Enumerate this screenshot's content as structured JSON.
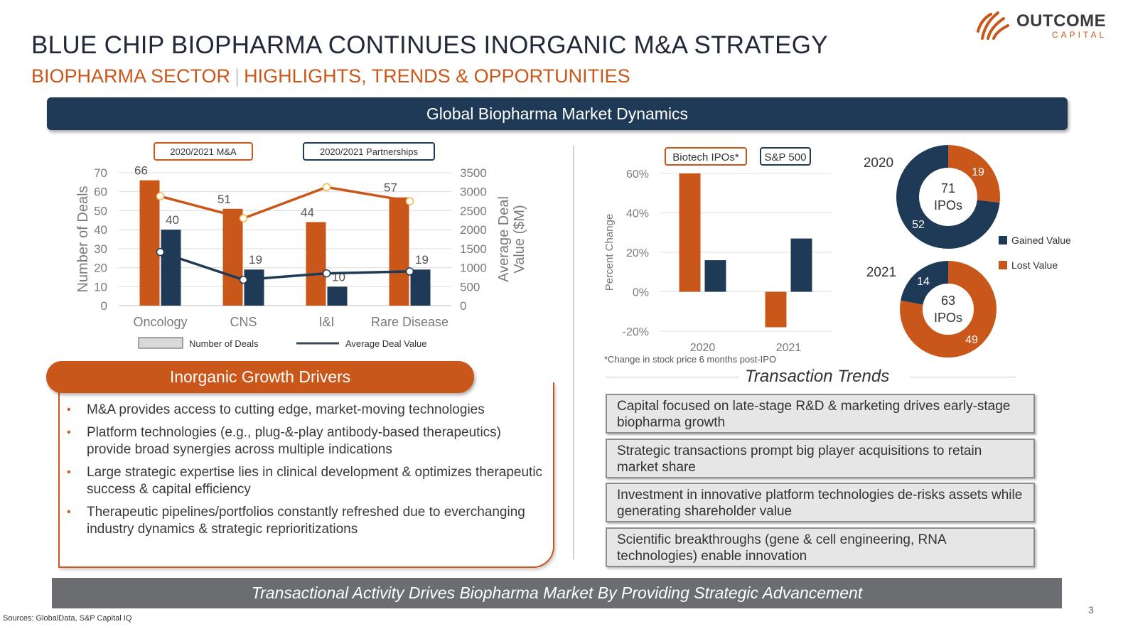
{
  "header": {
    "title": "BLUE CHIP BIOPHARMA CONTINUES INORGANIC M&A STRATEGY",
    "subtitle_left": "BIOPHARMA SECTOR",
    "subtitle_sep": "|",
    "subtitle_right": "HIGHLIGHTS, TRENDS & OPPORTUNITIES"
  },
  "logo": {
    "word": "OUTCOME",
    "sub": "CAPITAL",
    "icon": "sunburst-logo-icon"
  },
  "banner": {
    "title": "Global Biopharma Market Dynamics"
  },
  "colors": {
    "navy": "#1f3a56",
    "orange": "#c9571a",
    "gray": "#6b6d70"
  },
  "chart_data": [
    {
      "type": "bar",
      "id": "ma-partnerships",
      "title": "",
      "legend_boxes": [
        "2020/2021 M&A",
        "2020/2021 Partnerships"
      ],
      "categories": [
        "Oncology",
        "CNS",
        "I&I",
        "Rare Disease"
      ],
      "series": [
        {
          "name": "2020/2021 M&A",
          "kind": "bar",
          "axis": "left",
          "color": "#c9571a",
          "values": [
            66,
            51,
            44,
            57
          ]
        },
        {
          "name": "2020/2021 Partnerships",
          "kind": "bar",
          "axis": "left",
          "color": "#1f3a56",
          "values": [
            40,
            19,
            10,
            19
          ]
        },
        {
          "name": "M&A Average Deal Value",
          "kind": "line",
          "axis": "right",
          "color": "#c9571a",
          "values": [
            2880,
            2300,
            3120,
            2750
          ]
        },
        {
          "name": "Partnerships Average Deal Value",
          "kind": "line",
          "axis": "right",
          "color": "#1f3a56",
          "values": [
            1410,
            680,
            850,
            900
          ]
        }
      ],
      "ylabel": "Number of Deals",
      "y2label": "Average Deal Value ($M)",
      "ylim": [
        0,
        70
      ],
      "y2lim": [
        0,
        3500
      ],
      "yticks": [
        0,
        10,
        20,
        30,
        40,
        50,
        60,
        70
      ],
      "y2ticks": [
        0,
        500,
        1000,
        1500,
        2000,
        2500,
        3000,
        3500
      ],
      "legend": [
        "Number of Deals",
        "Average Deal Value"
      ]
    },
    {
      "type": "bar",
      "id": "ipo-performance",
      "legend_boxes": [
        "Biotech IPOs*",
        "S&P 500"
      ],
      "categories": [
        "2020",
        "2021"
      ],
      "series": [
        {
          "name": "Biotech IPOs*",
          "color": "#c9571a",
          "values": [
            60,
            -18
          ]
        },
        {
          "name": "S&P 500",
          "color": "#1f3a56",
          "values": [
            16,
            27
          ]
        }
      ],
      "ylabel": "Percent Change",
      "ylim": [
        -20,
        60
      ],
      "yticks": [
        -20,
        0,
        20,
        40,
        60
      ],
      "ytick_labels": [
        "-20%",
        "0%",
        "20%",
        "40%",
        "60%"
      ],
      "footnote": "*Change in stock price 6 months post-IPO"
    },
    {
      "type": "pie",
      "id": "ipos-2020",
      "title": "2020",
      "center_value": "71",
      "center_label": "IPOs",
      "slices": [
        {
          "name": "Gained Value",
          "value": 52,
          "color": "#1f3a56"
        },
        {
          "name": "Lost Value",
          "value": 19,
          "color": "#c9571a"
        }
      ]
    },
    {
      "type": "pie",
      "id": "ipos-2021",
      "title": "2021",
      "center_value": "63",
      "center_label": "IPOs",
      "slices": [
        {
          "name": "Gained Value",
          "value": 14,
          "color": "#1f3a56"
        },
        {
          "name": "Lost Value",
          "value": 49,
          "color": "#c9571a"
        }
      ]
    }
  ],
  "donut_legend": [
    "Gained Value",
    "Lost Value"
  ],
  "drivers": {
    "title": "Inorganic Growth Drivers",
    "bullet": "•",
    "items": [
      "M&A provides access to cutting edge, market-moving technologies",
      "Platform technologies (e.g., plug-&-play antibody-based therapeutics) provide broad synergies across multiple indications",
      "Large strategic expertise lies in clinical development & optimizes therapeutic success & capital efficiency",
      "Therapeutic pipelines/portfolios constantly refreshed due to everchanging industry dynamics & strategic reprioritizations"
    ]
  },
  "trends": {
    "title": "Transaction Trends",
    "items": [
      "Capital focused on late-stage R&D & marketing drives early-stage biopharma growth",
      "Strategic transactions prompt big player acquisitions to retain market share",
      "Investment in innovative platform technologies de-risks assets while generating shareholder value",
      "Scientific breakthroughs (gene & cell engineering, RNA technologies) enable innovation"
    ]
  },
  "footer": {
    "banner": "Transactional Activity Drives Biopharma Market By Providing Strategic Advancement",
    "sources": "Sources: GlobalData, S&P Capital IQ",
    "page": "3"
  }
}
